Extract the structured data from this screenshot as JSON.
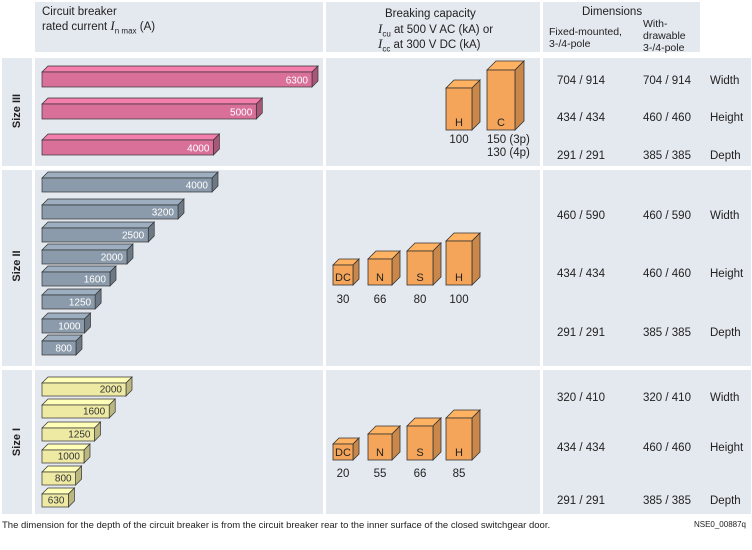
{
  "header": {
    "col1_line1": "Circuit breaker",
    "col1_line2_pre": "rated current ",
    "col1_symbol": "I",
    "col1_sub": "n max",
    "col1_unit": " (A)",
    "col2_title": "Breaking capacity",
    "col2_line2_symbol": "I",
    "col2_line2_sub": "cu",
    "col2_line2_text": " at 500 V AC (kA) or",
    "col2_line3_symbol": "I",
    "col2_line3_sub": "cc",
    "col2_line3_text": " at 300 V DC (kA)",
    "col3_title": "Dimensions",
    "col3_sub1_line1": "Fixed-mounted,",
    "col3_sub1_line2": "3-/4-pole",
    "col3_sub2_line1": "With-",
    "col3_sub2_line2": "drawable",
    "col3_sub2_line3": "3-/4-pole"
  },
  "sizes": [
    {
      "name": "Size III",
      "currents": [
        "6300",
        "5000",
        "4000"
      ],
      "color": "#d9709a",
      "boxes": [
        {
          "letter": "H",
          "value": "100"
        },
        {
          "letter": "C",
          "value": "150 (3p)",
          "value2": "130 (4p)"
        }
      ],
      "dims": [
        {
          "fixed": "704 / 914",
          "withdrawable": "704 / 914",
          "label": "Width"
        },
        {
          "fixed": "434 / 434",
          "withdrawable": "460 / 460",
          "label": "Height"
        },
        {
          "fixed": "291 / 291",
          "withdrawable": "385 / 385",
          "label": "Depth"
        }
      ]
    },
    {
      "name": "Size II",
      "currents": [
        "4000",
        "3200",
        "2500",
        "2000",
        "1600",
        "1250",
        "1000",
        "800"
      ],
      "color": "#8b9bab",
      "boxes": [
        {
          "letter": "DC",
          "value": "30"
        },
        {
          "letter": "N",
          "value": "66"
        },
        {
          "letter": "S",
          "value": "80"
        },
        {
          "letter": "H",
          "value": "100"
        }
      ],
      "dims": [
        {
          "fixed": "460 / 590",
          "withdrawable": "460 / 590",
          "label": "Width"
        },
        {
          "fixed": "434 / 434",
          "withdrawable": "460 / 460",
          "label": "Height"
        },
        {
          "fixed": "291 / 291",
          "withdrawable": "385 / 385",
          "label": "Depth"
        }
      ]
    },
    {
      "name": "Size I",
      "currents": [
        "2000",
        "1600",
        "1250",
        "1000",
        "800",
        "630"
      ],
      "color": "#eeeaa4",
      "boxes": [
        {
          "letter": "DC",
          "value": "20"
        },
        {
          "letter": "N",
          "value": "55"
        },
        {
          "letter": "S",
          "value": "66"
        },
        {
          "letter": "H",
          "value": "85"
        }
      ],
      "dims": [
        {
          "fixed": "320 / 410",
          "withdrawable": "320 / 410",
          "label": "Width"
        },
        {
          "fixed": "434 / 434",
          "withdrawable": "460 / 460",
          "label": "Height"
        },
        {
          "fixed": "291 / 291",
          "withdrawable": "385 / 385",
          "label": "Depth"
        }
      ]
    }
  ],
  "footnote": "The dimension for the depth of the circuit breaker is from the circuit breaker rear to the inner surface of the closed switchgear door.",
  "code": "NSE0_00887q",
  "colors": {
    "panel": "#e4e8ef",
    "box_orange": "#f5a55a",
    "box_border": "#333333"
  }
}
